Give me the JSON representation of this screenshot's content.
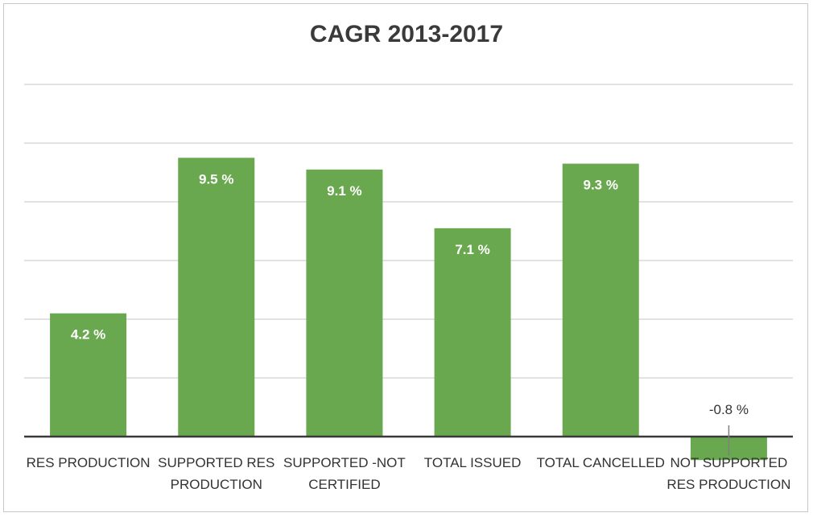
{
  "chart_data": {
    "type": "bar",
    "title": "CAGR 2013-2017",
    "categories": [
      [
        "RES PRODUCTION"
      ],
      [
        "SUPPORTED RES",
        "PRODUCTION"
      ],
      [
        "SUPPORTED -NOT",
        "CERTIFIED"
      ],
      [
        "TOTAL ISSUED"
      ],
      [
        "TOTAL CANCELLED"
      ],
      [
        "NOT SUPPORTED",
        "RES PRODUCTION"
      ]
    ],
    "values": [
      4.2,
      9.5,
      9.1,
      7.1,
      9.3,
      -0.8
    ],
    "data_labels": [
      "4.2 %",
      "9.5 %",
      "9.1 %",
      "7.1 %",
      "9.3 %",
      "-0.8 %"
    ],
    "ylim": [
      -1,
      12
    ],
    "gridlines": [
      2,
      4,
      6,
      8,
      10,
      12
    ],
    "grid": true,
    "legend": false,
    "xlabel": "",
    "ylabel": "",
    "colors": {
      "bar": "#6aa84f",
      "grid": "#d9d9d9",
      "axis": "#3a3a3a",
      "leader": "#7f7f7f"
    }
  }
}
